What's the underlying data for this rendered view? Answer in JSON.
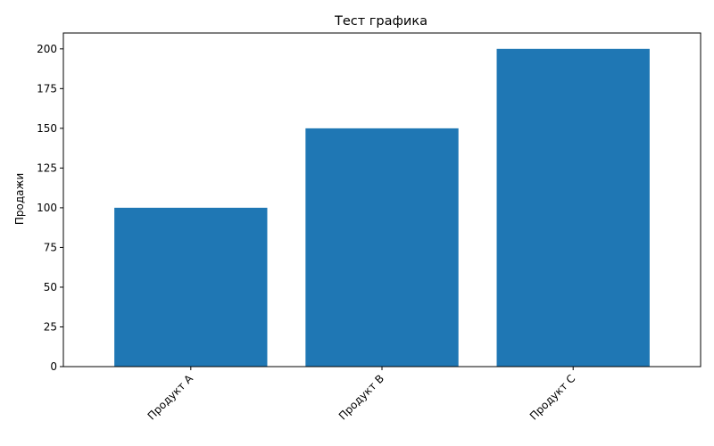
{
  "chart_data": {
    "type": "bar",
    "title": "Тест графика",
    "xlabel": "",
    "ylabel": "Продажи",
    "categories": [
      "Продукт A",
      "Продукт B",
      "Продукт C"
    ],
    "values": [
      100,
      150,
      200
    ],
    "ylim": [
      0,
      210
    ],
    "yticks": [
      0,
      25,
      50,
      75,
      100,
      125,
      150,
      175,
      200
    ],
    "xtick_rotation_deg": 45,
    "bar_color": "#1f77b4",
    "grid": false,
    "legend": "none"
  }
}
